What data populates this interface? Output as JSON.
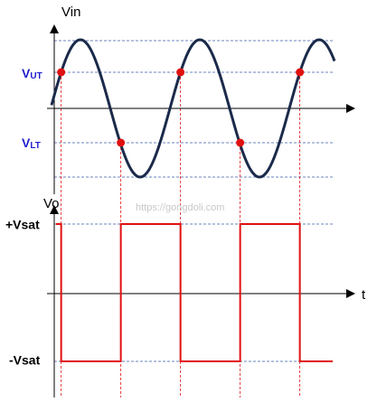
{
  "axes": {
    "input_label": "Vin",
    "output_label": "Vo",
    "time_label": "t"
  },
  "thresholds": {
    "upper": {
      "symbol": "V",
      "subscript": "UT"
    },
    "lower": {
      "symbol": "V",
      "subscript": "LT"
    }
  },
  "levels": {
    "positive": "+Vsat",
    "negative": "-Vsat"
  },
  "watermark": "https://gongdoli.com"
}
